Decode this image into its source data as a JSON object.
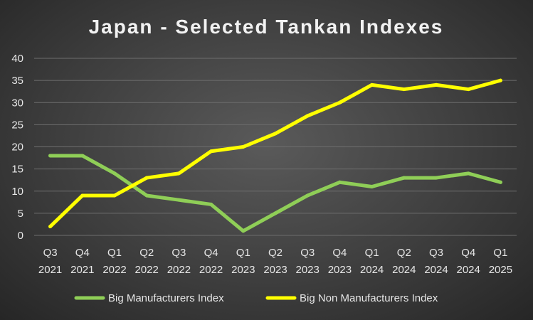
{
  "chart_data": {
    "type": "line",
    "title": "Japan - Selected Tankan Indexes",
    "categories": [
      [
        "Q3",
        "2021"
      ],
      [
        "Q4",
        "2021"
      ],
      [
        "Q1",
        "2022"
      ],
      [
        "Q2",
        "2022"
      ],
      [
        "Q3",
        "2022"
      ],
      [
        "Q4",
        "2022"
      ],
      [
        "Q1",
        "2023"
      ],
      [
        "Q2",
        "2023"
      ],
      [
        "Q3",
        "2023"
      ],
      [
        "Q4",
        "2023"
      ],
      [
        "Q1",
        "2024"
      ],
      [
        "Q2",
        "2024"
      ],
      [
        "Q3",
        "2024"
      ],
      [
        "Q4",
        "2024"
      ],
      [
        "Q1",
        "2025"
      ]
    ],
    "ylim": [
      0,
      40
    ],
    "yticks": [
      0,
      5,
      10,
      15,
      20,
      25,
      30,
      35,
      40
    ],
    "grid": true,
    "legend_position": "bottom",
    "series": [
      {
        "name": "Big Manufacturers Index",
        "color": "#8fce57",
        "values": [
          18,
          18,
          14,
          9,
          8,
          7,
          1,
          5,
          9,
          12,
          11,
          13,
          13,
          14,
          12
        ]
      },
      {
        "name": "Big Non Manufacturers Index",
        "color": "#ffff00",
        "values": [
          2,
          9,
          9,
          13,
          14,
          19,
          20,
          23,
          27,
          30,
          34,
          33,
          34,
          33,
          35
        ]
      }
    ]
  }
}
